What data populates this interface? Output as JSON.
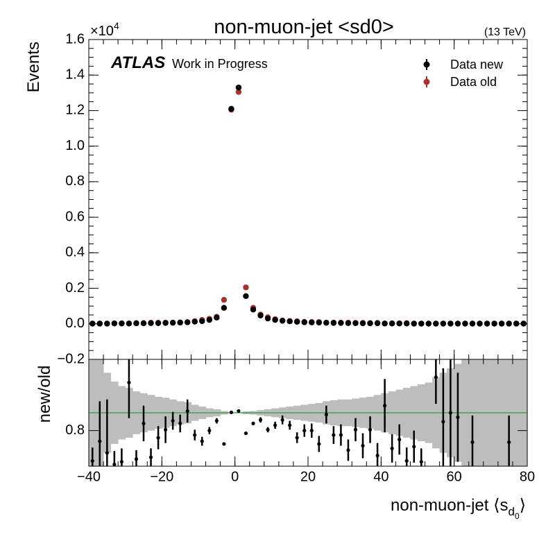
{
  "chart_data": [
    {
      "type": "scatter",
      "title": "non-muon-jet <sd0>",
      "energy_label": "(13 TeV)",
      "experiment": "ATLAS",
      "status": "Work in Progress",
      "y_label": "Events",
      "y_multiplier": {
        "base": "×10",
        "exponent": "4"
      },
      "legend": "upper right",
      "xlim": [
        -40,
        80
      ],
      "ylim": [
        -0.2,
        1.6
      ],
      "yticks": [
        {
          "value": -0.2,
          "label": "−0.2"
        },
        {
          "value": 0,
          "label": "0.0"
        },
        0.2,
        0.4,
        0.6,
        0.8,
        {
          "value": 1,
          "label": "1.0"
        },
        1.2,
        1.4,
        1.6
      ],
      "x": [
        -39,
        -37,
        -35,
        -33,
        -31,
        -29,
        -27,
        -25,
        -23,
        -21,
        -19,
        -17,
        -15,
        -13,
        -11,
        -9,
        -7,
        -5,
        -3,
        -1,
        1,
        3,
        5,
        7,
        9,
        11,
        13,
        15,
        17,
        19,
        21,
        23,
        25,
        27,
        29,
        31,
        33,
        35,
        37,
        39,
        41,
        43,
        45,
        47,
        49,
        51,
        53,
        55,
        57,
        59,
        61,
        63,
        65,
        67,
        69,
        71,
        73,
        75,
        77,
        79
      ],
      "series": [
        {
          "name": "Data new",
          "color": "#000000",
          "values": [
            0.001,
            0.001,
            0.001,
            0.002,
            0.002,
            0.002,
            0.003,
            0.003,
            0.004,
            0.004,
            0.005,
            0.006,
            0.007,
            0.009,
            0.012,
            0.015,
            0.022,
            0.035,
            0.09,
            1.21,
            1.33,
            0.156,
            0.08,
            0.047,
            0.03,
            0.022,
            0.017,
            0.014,
            0.011,
            0.009,
            0.008,
            0.007,
            0.006,
            0.005,
            0.005,
            0.004,
            0.004,
            0.003,
            0.003,
            0.003,
            0.002,
            0.002,
            0.002,
            0.002,
            0.001,
            0.001,
            0.001,
            0.001,
            0.001,
            0.001,
            0.001,
            0.001,
            0.001,
            0.001,
            0.001,
            0.001,
            0.001,
            0.001,
            0.001,
            0.001
          ]
        },
        {
          "name": "Data old",
          "color": "#a8312c",
          "values": [
            0.002,
            0.002,
            0.002,
            0.003,
            0.003,
            0.002,
            0.004,
            0.004,
            0.006,
            0.006,
            0.006,
            0.007,
            0.008,
            0.009,
            0.015,
            0.022,
            0.028,
            0.04,
            0.135,
            1.205,
            1.305,
            0.205,
            0.09,
            0.052,
            0.037,
            0.026,
            0.019,
            0.016,
            0.015,
            0.011,
            0.01,
            0.01,
            0.006,
            0.007,
            0.006,
            0.006,
            0.005,
            0.005,
            0.004,
            0.005,
            0.002,
            0.003,
            0.003,
            0.004,
            0.002,
            0.002,
            0.002,
            0.002,
            0.002,
            0.002,
            0.002,
            0.002,
            0.002,
            0.002,
            0.002,
            0.002,
            0.002,
            0.002,
            0.002,
            0.002
          ]
        }
      ]
    },
    {
      "type": "ratio",
      "y_label": "new/old",
      "x_label": {
        "text": "non-muon-jet ⟨s",
        "sub": "d",
        "subsub": "0",
        "close": "⟩"
      },
      "xlim": [
        -40,
        80
      ],
      "xticks": [
        {
          "value": -40,
          "label": "−40"
        },
        {
          "value": -20,
          "label": "−20"
        },
        0,
        20,
        40,
        60,
        80
      ],
      "ylim": [
        0.4,
        1.6
      ],
      "yticks": [
        0.8
      ],
      "reference_line": 1,
      "reference_color": "#2ca02c",
      "x": [
        -39,
        -37,
        -35,
        -33,
        -31,
        -29,
        -27,
        -25,
        -23,
        -21,
        -19,
        -17,
        -15,
        -13,
        -11,
        -9,
        -7,
        -5,
        -3,
        -1,
        1,
        3,
        5,
        7,
        9,
        11,
        13,
        15,
        17,
        19,
        21,
        23,
        25,
        27,
        29,
        31,
        33,
        35,
        37,
        39,
        41,
        43,
        45,
        47,
        49,
        51,
        53,
        55,
        57,
        59,
        61,
        63,
        65,
        67,
        69,
        71,
        73,
        75,
        77,
        79
      ],
      "band": {
        "color": "#bdbdbd",
        "values": [
          0.8,
          0.6,
          0.45,
          0.35,
          0.3,
          0.28,
          0.24,
          0.22,
          0.2,
          0.18,
          0.17,
          0.15,
          0.13,
          0.12,
          0.09,
          0.07,
          0.05,
          0.04,
          0.02,
          0.005,
          0.005,
          0.015,
          0.02,
          0.03,
          0.04,
          0.05,
          0.06,
          0.07,
          0.08,
          0.09,
          0.1,
          0.11,
          0.13,
          0.14,
          0.15,
          0.15,
          0.16,
          0.17,
          0.18,
          0.2,
          0.22,
          0.24,
          0.26,
          0.28,
          0.3,
          0.32,
          0.34,
          0.4,
          0.45,
          0.5,
          0.55,
          0.6,
          0.7,
          0.7,
          0.8,
          0.8,
          0.8,
          0.8,
          0.8,
          0.8
        ]
      },
      "series": [
        {
          "color": "#000000",
          "values": [
            0.46,
            0.68,
            0.55,
            0.42,
            0.45,
            1.34,
            0.48,
            0.88,
            0.5,
            0.72,
            0.81,
            0.91,
            0.88,
            1.02,
            0.75,
            0.68,
            0.8,
            0.91,
            0.65,
            1.005,
            1.02,
            0.77,
            0.88,
            0.92,
            0.81,
            0.86,
            0.92,
            0.86,
            0.72,
            0.8,
            0.8,
            0.65,
            0.98,
            0.75,
            0.75,
            0.58,
            0.81,
            0.63,
            0.81,
            0.52,
            1.08,
            0.6,
            0.7,
            0.46,
            0.62,
            0.45,
            null,
            1.4,
            0.9,
            1.0,
            0.95,
            null,
            0.67,
            null,
            null,
            null,
            null,
            0.67,
            null,
            null
          ],
          "errors": [
            0.15,
            0.45,
            0.6,
            0.15,
            0.15,
            0.4,
            0.1,
            0.2,
            0.1,
            0.13,
            0.15,
            0.1,
            0.1,
            0.13,
            0.06,
            0.05,
            0.04,
            0.03,
            0.01,
            0.005,
            0.005,
            0.01,
            0.02,
            0.03,
            0.03,
            0.04,
            0.05,
            0.05,
            0.06,
            0.07,
            0.08,
            0.09,
            0.1,
            0.1,
            0.12,
            0.12,
            0.13,
            0.14,
            0.15,
            0.14,
            0.3,
            0.16,
            0.17,
            0.15,
            0.18,
            0.15,
            null,
            0.3,
            0.6,
            0.6,
            0.5,
            null,
            0.3,
            null,
            null,
            null,
            null,
            0.3,
            null,
            null
          ]
        }
      ]
    }
  ]
}
